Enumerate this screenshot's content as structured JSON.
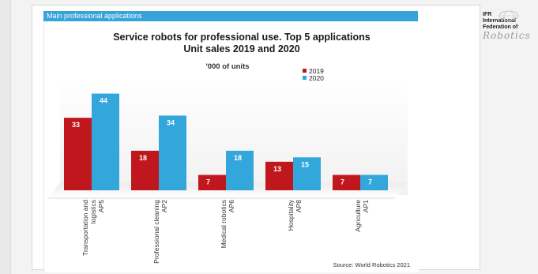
{
  "panel_header": "Main professional applications",
  "logo": {
    "lines": [
      "IFR",
      "International",
      "Federation of"
    ],
    "script": "Robotics"
  },
  "chart_data": {
    "type": "bar",
    "title": "Service robots for professional use. Top 5 applications",
    "subtitle": "Unit sales 2019 and 2020",
    "unit_label": "'000 of units",
    "categories": [
      [
        "Transportation and",
        "logistics",
        "AP5"
      ],
      [
        "Professional cleaning",
        "AP2"
      ],
      [
        "Medical robotics",
        "AP6"
      ],
      [
        "Hospitality",
        "AP8"
      ],
      [
        "Agriculture",
        "AP1"
      ]
    ],
    "series": [
      {
        "name": "2019",
        "color": "#c0161d",
        "values": [
          33,
          18,
          7,
          13,
          7
        ]
      },
      {
        "name": "2020",
        "color": "#33a6dc",
        "values": [
          44,
          34,
          18,
          15,
          7
        ]
      }
    ],
    "ylim": [
      0,
      46
    ],
    "grid": false,
    "legend_position": "top-right",
    "source": "Source: World Robotics 2021"
  }
}
